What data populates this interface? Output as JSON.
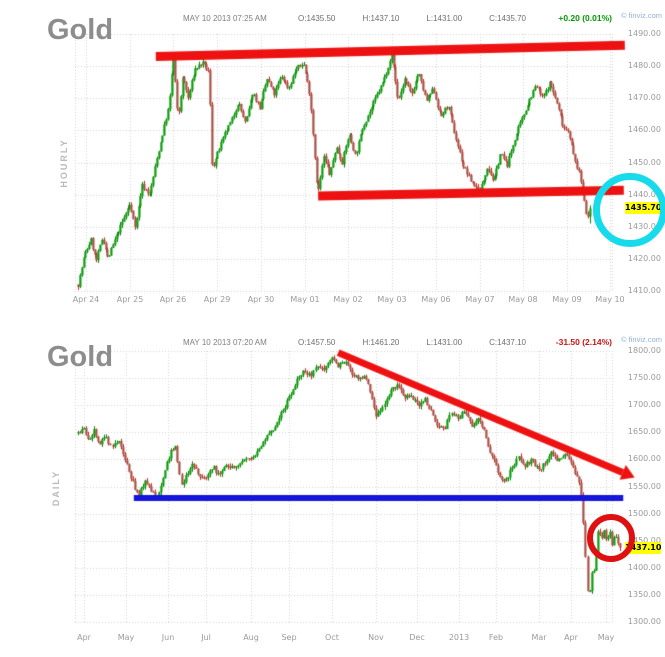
{
  "page": {
    "background": "#ffffff",
    "watermark_color": "#8fb0d8",
    "grid_color": "#d2d2d2",
    "candle_up_color": "#0b9b0b",
    "candle_down_body_color": "#a65045",
    "candle_down_wick_color": "#c8261c"
  },
  "chart_data": [
    {
      "type": "candlestick",
      "title": "Gold",
      "timeframe": "HOURLY",
      "datetime": "MAY 10 2013 07:25 AM",
      "ohlc_labels": [
        "O:1435.50",
        "H:1437.10",
        "L:1431.00",
        "C:1435.70"
      ],
      "change": "+0.20 (0.01%)",
      "change_color": "#009b00",
      "watermark": "© finviz.com",
      "ylim": [
        1410,
        1490
      ],
      "grid": true,
      "legend_position": "none",
      "last_price": 1435.7,
      "last_price_label": "1435.70",
      "last_low": 1431.0,
      "n_candles": 280,
      "y_ticks": [
        {
          "v": 1490,
          "label": "1490.00"
        },
        {
          "v": 1480,
          "label": "1480.00"
        },
        {
          "v": 1470,
          "label": "1470.00"
        },
        {
          "v": 1460,
          "label": "1460.00"
        },
        {
          "v": 1450,
          "label": "1450.00"
        },
        {
          "v": 1440,
          "label": "1440.00"
        },
        {
          "v": 1430,
          "label": "1430.00"
        },
        {
          "v": 1420,
          "label": "1420.00"
        },
        {
          "v": 1410,
          "label": "1410.00"
        }
      ],
      "x_ticks": [
        {
          "label": "Apr 24",
          "f": 0.0156
        },
        {
          "label": "Apr 25",
          "f": 0.1016
        },
        {
          "label": "Apr 26",
          "f": 0.1855
        },
        {
          "label": "Apr 29",
          "f": 0.2715
        },
        {
          "label": "Apr 30",
          "f": 0.3574
        },
        {
          "label": "May 01",
          "f": 0.4434
        },
        {
          "label": "May 02",
          "f": 0.5273
        },
        {
          "label": "May 03",
          "f": 0.6133
        },
        {
          "label": "May 06",
          "f": 0.6992
        },
        {
          "label": "May 07",
          "f": 0.7852
        },
        {
          "label": "May 08",
          "f": 0.8691
        },
        {
          "label": "May 09",
          "f": 0.9551
        },
        {
          "label": "May 10",
          "f": 1.0391
        }
      ],
      "anchors": [
        [
          0,
          1412
        ],
        [
          0.012,
          1421
        ],
        [
          0.025,
          1426
        ],
        [
          0.035,
          1419
        ],
        [
          0.048,
          1427
        ],
        [
          0.058,
          1420
        ],
        [
          0.072,
          1426
        ],
        [
          0.085,
          1431
        ],
        [
          0.1,
          1437
        ],
        [
          0.112,
          1430
        ],
        [
          0.125,
          1443
        ],
        [
          0.14,
          1440
        ],
        [
          0.155,
          1452
        ],
        [
          0.168,
          1461
        ],
        [
          0.178,
          1468
        ],
        [
          0.186,
          1484
        ],
        [
          0.195,
          1463
        ],
        [
          0.205,
          1477
        ],
        [
          0.215,
          1470
        ],
        [
          0.228,
          1479
        ],
        [
          0.243,
          1481
        ],
        [
          0.256,
          1478
        ],
        [
          0.262,
          1448
        ],
        [
          0.273,
          1453
        ],
        [
          0.287,
          1459
        ],
        [
          0.3,
          1463
        ],
        [
          0.313,
          1469
        ],
        [
          0.327,
          1462
        ],
        [
          0.341,
          1472
        ],
        [
          0.355,
          1467
        ],
        [
          0.369,
          1476
        ],
        [
          0.383,
          1471
        ],
        [
          0.397,
          1477
        ],
        [
          0.411,
          1473
        ],
        [
          0.425,
          1479
        ],
        [
          0.44,
          1481
        ],
        [
          0.453,
          1471
        ],
        [
          0.468,
          1440
        ],
        [
          0.48,
          1452
        ],
        [
          0.492,
          1446
        ],
        [
          0.504,
          1455
        ],
        [
          0.516,
          1450
        ],
        [
          0.529,
          1459
        ],
        [
          0.542,
          1452
        ],
        [
          0.556,
          1461
        ],
        [
          0.57,
          1466
        ],
        [
          0.584,
          1471
        ],
        [
          0.598,
          1476
        ],
        [
          0.613,
          1484
        ],
        [
          0.625,
          1469
        ],
        [
          0.638,
          1476
        ],
        [
          0.651,
          1471
        ],
        [
          0.665,
          1478
        ],
        [
          0.68,
          1469
        ],
        [
          0.694,
          1473
        ],
        [
          0.708,
          1464
        ],
        [
          0.722,
          1468
        ],
        [
          0.737,
          1458
        ],
        [
          0.752,
          1449
        ],
        [
          0.768,
          1444
        ],
        [
          0.785,
          1441
        ],
        [
          0.8,
          1449
        ],
        [
          0.812,
          1444
        ],
        [
          0.825,
          1453
        ],
        [
          0.838,
          1449
        ],
        [
          0.852,
          1457
        ],
        [
          0.866,
          1463
        ],
        [
          0.88,
          1469
        ],
        [
          0.894,
          1474
        ],
        [
          0.908,
          1470
        ],
        [
          0.922,
          1475
        ],
        [
          0.936,
          1468
        ],
        [
          0.948,
          1461
        ],
        [
          0.958,
          1460
        ],
        [
          0.968,
          1452
        ],
        [
          0.978,
          1447
        ],
        [
          0.988,
          1440
        ],
        [
          0.995,
          1432
        ],
        [
          1,
          1435.7
        ]
      ],
      "annotations": [
        {
          "kind": "segment",
          "name": "resistance-line",
          "color": "#ee1111",
          "lw": 9,
          "x1f": 0.152,
          "p1": 1483.0,
          "x2f": 1.068,
          "p2": 1486.5
        },
        {
          "kind": "segment",
          "name": "support-line",
          "color": "#ee1111",
          "lw": 9,
          "x1f": 0.469,
          "p1": 1439.6,
          "x2f": 1.066,
          "p2": 1441.4
        },
        {
          "kind": "circle",
          "name": "breakdown-highlight-circle",
          "color": "#17dbeb",
          "lw": 7,
          "cxf": 1.078,
          "p": 1435.2,
          "r": 30
        }
      ]
    },
    {
      "type": "candlestick",
      "title": "Gold",
      "timeframe": "DAILY",
      "datetime": "MAY 10 2013 07:20 AM",
      "ohlc_labels": [
        "O:1457.50",
        "H:1461.20",
        "L:1431.00",
        "C:1437.10"
      ],
      "change": "-31.50 (2.14%)",
      "change_color": "#cc1515",
      "watermark": "© finviz.com",
      "ylim": [
        1300,
        1800
      ],
      "grid": true,
      "legend_position": "none",
      "last_price": 1437.1,
      "last_price_label": "1437.10",
      "last_low": 1431.0,
      "n_candles": 268,
      "y_ticks": [
        {
          "v": 1800,
          "label": "1800.00"
        },
        {
          "v": 1750,
          "label": "1750.00"
        },
        {
          "v": 1700,
          "label": "1700.00"
        },
        {
          "v": 1650,
          "label": "1650.00"
        },
        {
          "v": 1600,
          "label": "1600.00"
        },
        {
          "v": 1550,
          "label": "1550.00"
        },
        {
          "v": 1500,
          "label": "1500.00"
        },
        {
          "v": 1450,
          "label": "1450.00"
        },
        {
          "v": 1400,
          "label": "1400.00"
        },
        {
          "v": 1350,
          "label": "1350.00"
        },
        {
          "v": 1300,
          "label": "1300.00"
        }
      ],
      "x_ticks": [
        {
          "label": "Apr",
          "f": 0.0111
        },
        {
          "label": "May",
          "f": 0.0886
        },
        {
          "label": "Jun",
          "f": 0.1661
        },
        {
          "label": "Jul",
          "f": 0.2362
        },
        {
          "label": "Aug",
          "f": 0.3192
        },
        {
          "label": "Sep",
          "f": 0.3893
        },
        {
          "label": "Oct",
          "f": 0.4686
        },
        {
          "label": "Nov",
          "f": 0.5498
        },
        {
          "label": "Dec",
          "f": 0.6255
        },
        {
          "label": "2013",
          "f": 0.703
        },
        {
          "label": "Feb",
          "f": 0.7712
        },
        {
          "label": "Mar",
          "f": 0.8506
        },
        {
          "label": "Apr",
          "f": 0.9096
        },
        {
          "label": "May",
          "f": 0.9742
        }
      ],
      "anchors": [
        [
          0,
          1648
        ],
        [
          0.01,
          1656
        ],
        [
          0.02,
          1638
        ],
        [
          0.03,
          1652
        ],
        [
          0.04,
          1630
        ],
        [
          0.052,
          1641
        ],
        [
          0.062,
          1622
        ],
        [
          0.075,
          1632
        ],
        [
          0.085,
          1601
        ],
        [
          0.098,
          1565
        ],
        [
          0.111,
          1528
        ],
        [
          0.123,
          1562
        ],
        [
          0.134,
          1546
        ],
        [
          0.147,
          1530
        ],
        [
          0.16,
          1577
        ],
        [
          0.171,
          1612
        ],
        [
          0.18,
          1621
        ],
        [
          0.19,
          1549
        ],
        [
          0.2,
          1573
        ],
        [
          0.211,
          1591
        ],
        [
          0.224,
          1566
        ],
        [
          0.236,
          1563
        ],
        [
          0.249,
          1586
        ],
        [
          0.261,
          1568
        ],
        [
          0.274,
          1593
        ],
        [
          0.289,
          1581
        ],
        [
          0.304,
          1601
        ],
        [
          0.319,
          1597
        ],
        [
          0.334,
          1618
        ],
        [
          0.349,
          1645
        ],
        [
          0.363,
          1662
        ],
        [
          0.378,
          1690
        ],
        [
          0.391,
          1718
        ],
        [
          0.404,
          1744
        ],
        [
          0.417,
          1766
        ],
        [
          0.429,
          1754
        ],
        [
          0.441,
          1776
        ],
        [
          0.454,
          1768
        ],
        [
          0.469,
          1790
        ],
        [
          0.479,
          1771
        ],
        [
          0.491,
          1781
        ],
        [
          0.504,
          1761
        ],
        [
          0.517,
          1747
        ],
        [
          0.529,
          1756
        ],
        [
          0.541,
          1721
        ],
        [
          0.552,
          1678
        ],
        [
          0.564,
          1699
        ],
        [
          0.577,
          1727
        ],
        [
          0.589,
          1741
        ],
        [
          0.601,
          1711
        ],
        [
          0.614,
          1721
        ],
        [
          0.627,
          1699
        ],
        [
          0.639,
          1713
        ],
        [
          0.651,
          1691
        ],
        [
          0.664,
          1661
        ],
        [
          0.677,
          1656
        ],
        [
          0.689,
          1689
        ],
        [
          0.701,
          1677
        ],
        [
          0.714,
          1689
        ],
        [
          0.727,
          1661
        ],
        [
          0.739,
          1673
        ],
        [
          0.751,
          1649
        ],
        [
          0.761,
          1611
        ],
        [
          0.774,
          1581
        ],
        [
          0.787,
          1555
        ],
        [
          0.799,
          1579
        ],
        [
          0.811,
          1606
        ],
        [
          0.824,
          1588
        ],
        [
          0.837,
          1599
        ],
        [
          0.849,
          1579
        ],
        [
          0.861,
          1596
        ],
        [
          0.874,
          1613
        ],
        [
          0.887,
          1597
        ],
        [
          0.899,
          1609
        ],
        [
          0.909,
          1601
        ],
        [
          0.916,
          1578
        ],
        [
          0.922,
          1565
        ],
        [
          0.928,
          1550
        ],
        [
          0.933,
          1478
        ],
        [
          0.938,
          1390
        ],
        [
          0.942,
          1324
        ],
        [
          0.946,
          1398
        ],
        [
          0.95,
          1380
        ],
        [
          0.955,
          1430
        ],
        [
          0.96,
          1478
        ],
        [
          0.965,
          1452
        ],
        [
          0.97,
          1472
        ],
        [
          0.975,
          1448
        ],
        [
          0.98,
          1468
        ],
        [
          0.985,
          1446
        ],
        [
          0.99,
          1464
        ],
        [
          0.995,
          1444
        ],
        [
          1,
          1437.1
        ]
      ],
      "annotations": [
        {
          "kind": "segment",
          "name": "horizontal-support-line",
          "color": "#1515dd",
          "lw": 6,
          "x1f": 0.103,
          "p1": 1529,
          "x2f": 1.006,
          "p2": 1529
        },
        {
          "kind": "arrow",
          "name": "downtrend-arrow",
          "color": "#ee1111",
          "lw": 7,
          "x1f": 0.48,
          "p1": 1797,
          "x2f": 1.005,
          "p2": 1576
        },
        {
          "kind": "circle",
          "name": "consolidation-highlight-circle",
          "color": "#dd1111",
          "lw": 6,
          "cxf": 0.984,
          "p": 1455,
          "r": 18
        }
      ]
    }
  ]
}
